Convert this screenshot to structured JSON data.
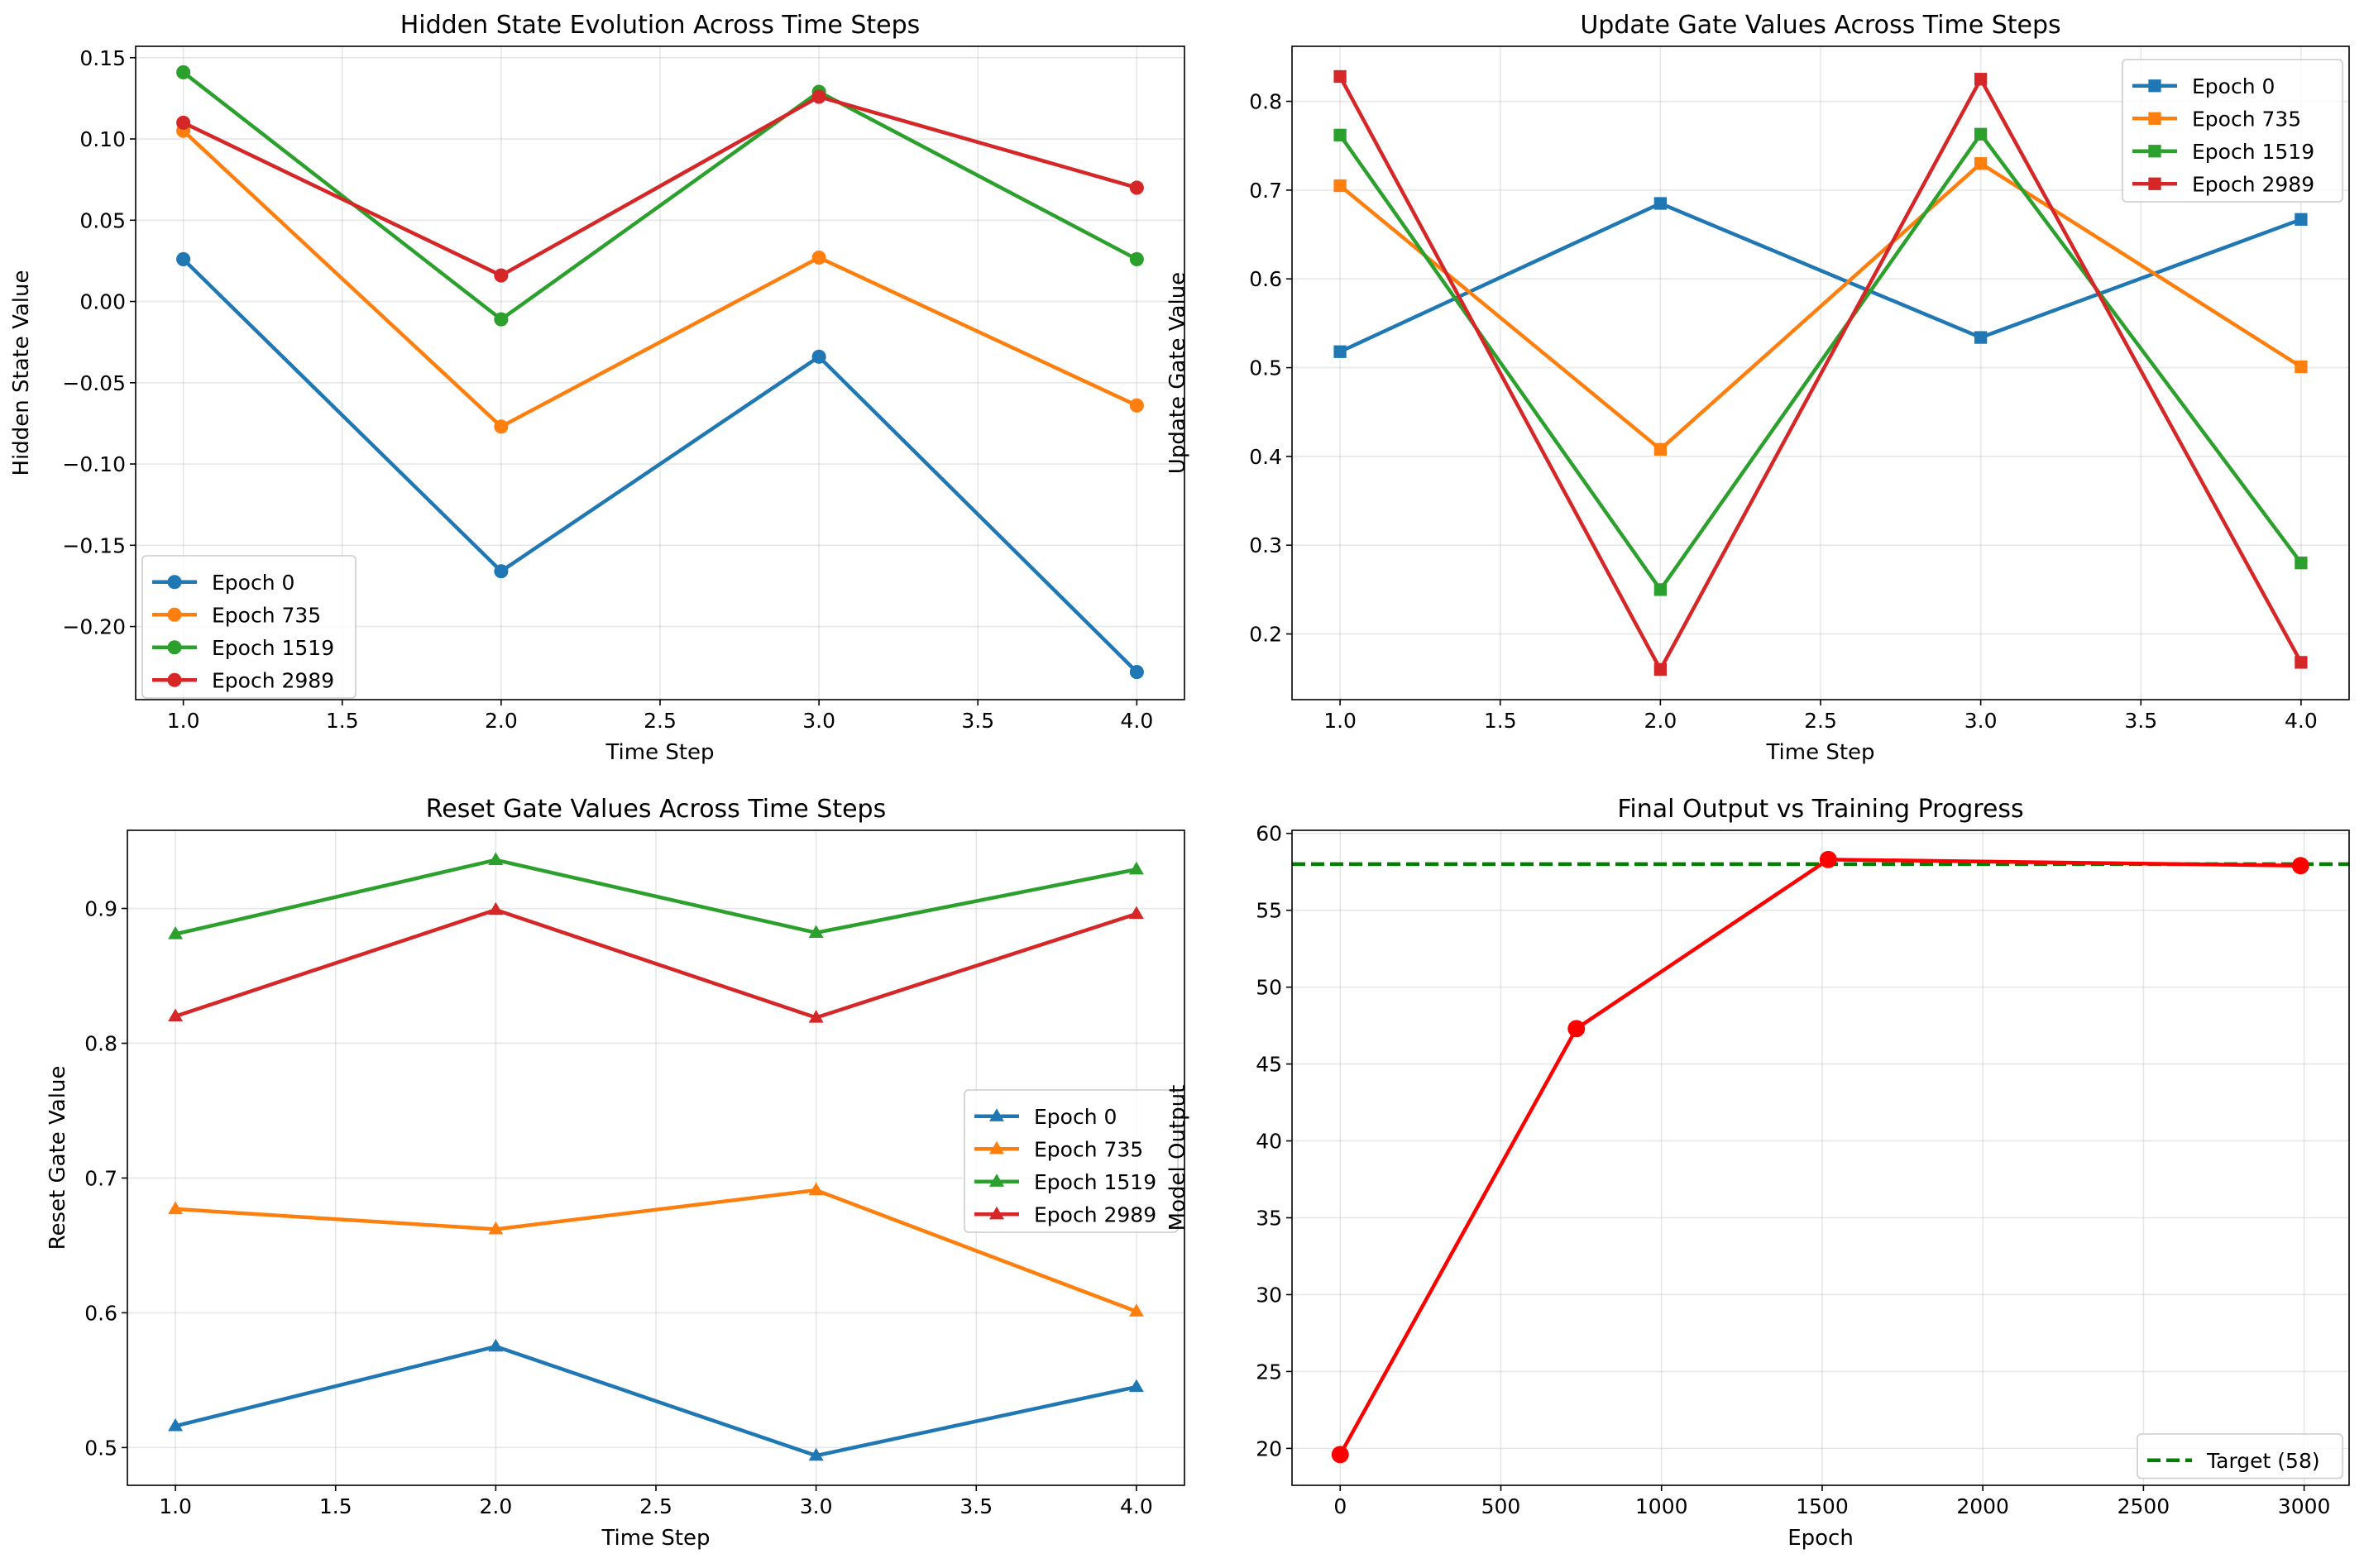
{
  "chart_data": [
    {
      "type": "line",
      "title": "Hidden State Evolution Across Time Steps",
      "xlabel": "Time Step",
      "ylabel": "Hidden State Value",
      "xlim": [
        0.85,
        4.15
      ],
      "ylim": [
        -0.245,
        0.157
      ],
      "xticks": [
        1.0,
        1.5,
        2.0,
        2.5,
        3.0,
        3.5,
        4.0
      ],
      "xtick_labels": [
        "1.0",
        "1.5",
        "2.0",
        "2.5",
        "3.0",
        "3.5",
        "4.0"
      ],
      "yticks": [
        -0.2,
        -0.15,
        -0.1,
        -0.05,
        0.0,
        0.05,
        0.1,
        0.15
      ],
      "ytick_labels": [
        "−0.20",
        "−0.15",
        "−0.10",
        "−0.05",
        "0.00",
        "0.05",
        "0.10",
        "0.15"
      ],
      "x": [
        1,
        2,
        3,
        4
      ],
      "marker": "circle",
      "grid": true,
      "legend": "lower-left",
      "series": [
        {
          "name": "Epoch 0",
          "color": "#1f77b4",
          "values": [
            0.026,
            -0.166,
            -0.034,
            -0.228
          ]
        },
        {
          "name": "Epoch 735",
          "color": "#ff7f0e",
          "values": [
            0.105,
            -0.077,
            0.027,
            -0.064
          ]
        },
        {
          "name": "Epoch 1519",
          "color": "#2ca02c",
          "values": [
            0.141,
            -0.011,
            0.129,
            0.026
          ]
        },
        {
          "name": "Epoch 2989",
          "color": "#d62728",
          "values": [
            0.11,
            0.016,
            0.126,
            0.07
          ]
        }
      ]
    },
    {
      "type": "line",
      "title": "Update Gate Values Across Time Steps",
      "xlabel": "Time Step",
      "ylabel": "Update Gate Value",
      "xlim": [
        0.85,
        4.15
      ],
      "ylim": [
        0.126,
        0.862
      ],
      "xticks": [
        1.0,
        1.5,
        2.0,
        2.5,
        3.0,
        3.5,
        4.0
      ],
      "xtick_labels": [
        "1.0",
        "1.5",
        "2.0",
        "2.5",
        "3.0",
        "3.5",
        "4.0"
      ],
      "yticks": [
        0.2,
        0.3,
        0.4,
        0.5,
        0.6,
        0.7,
        0.8
      ],
      "ytick_labels": [
        "0.2",
        "0.3",
        "0.4",
        "0.5",
        "0.6",
        "0.7",
        "0.8"
      ],
      "x": [
        1,
        2,
        3,
        4
      ],
      "marker": "square",
      "grid": true,
      "legend": "upper-right",
      "series": [
        {
          "name": "Epoch 0",
          "color": "#1f77b4",
          "values": [
            0.518,
            0.685,
            0.534,
            0.667
          ]
        },
        {
          "name": "Epoch 735",
          "color": "#ff7f0e",
          "values": [
            0.705,
            0.408,
            0.73,
            0.501
          ]
        },
        {
          "name": "Epoch 1519",
          "color": "#2ca02c",
          "values": [
            0.762,
            0.25,
            0.763,
            0.28
          ]
        },
        {
          "name": "Epoch 2989",
          "color": "#d62728",
          "values": [
            0.828,
            0.16,
            0.825,
            0.168
          ]
        }
      ]
    },
    {
      "type": "line",
      "title": "Reset Gate Values Across Time Steps",
      "xlabel": "Time Step",
      "ylabel": "Reset Gate Value",
      "xlim": [
        0.85,
        4.15
      ],
      "ylim": [
        0.472,
        0.958
      ],
      "xticks": [
        1.0,
        1.5,
        2.0,
        2.5,
        3.0,
        3.5,
        4.0
      ],
      "xtick_labels": [
        "1.0",
        "1.5",
        "2.0",
        "2.5",
        "3.0",
        "3.5",
        "4.0"
      ],
      "yticks": [
        0.5,
        0.6,
        0.7,
        0.8,
        0.9
      ],
      "ytick_labels": [
        "0.5",
        "0.6",
        "0.7",
        "0.8",
        "0.9"
      ],
      "x": [
        1,
        2,
        3,
        4
      ],
      "marker": "triangle",
      "grid": true,
      "legend": "center-right",
      "series": [
        {
          "name": "Epoch 0",
          "color": "#1f77b4",
          "values": [
            0.516,
            0.575,
            0.494,
            0.545
          ]
        },
        {
          "name": "Epoch 735",
          "color": "#ff7f0e",
          "values": [
            0.677,
            0.662,
            0.691,
            0.601
          ]
        },
        {
          "name": "Epoch 1519",
          "color": "#2ca02c",
          "values": [
            0.881,
            0.936,
            0.882,
            0.929
          ]
        },
        {
          "name": "Epoch 2989",
          "color": "#d62728",
          "values": [
            0.82,
            0.899,
            0.819,
            0.896
          ]
        }
      ]
    },
    {
      "type": "line",
      "title": "Final Output vs Training Progress",
      "xlabel": "Epoch",
      "ylabel": "Model Output",
      "xlim": [
        -150,
        3140
      ],
      "ylim": [
        17.6,
        60.2
      ],
      "xticks": [
        0,
        500,
        1000,
        1500,
        2000,
        2500,
        3000
      ],
      "xtick_labels": [
        "0",
        "500",
        "1000",
        "1500",
        "2000",
        "2500",
        "3000"
      ],
      "yticks": [
        20,
        25,
        30,
        35,
        40,
        45,
        50,
        55,
        60
      ],
      "ytick_labels": [
        "20",
        "25",
        "30",
        "35",
        "40",
        "45",
        "50",
        "55",
        "60"
      ],
      "marker": "circle",
      "grid": true,
      "legend": "lower-right",
      "series": [
        {
          "name": "",
          "color": "#ff0000",
          "x": [
            0,
            735,
            1519,
            2989
          ],
          "values": [
            19.6,
            47.3,
            58.3,
            57.9
          ]
        }
      ],
      "reference_lines": [
        {
          "name": "Target (58)",
          "value": 58,
          "color": "#008000",
          "style": "dashed"
        }
      ]
    }
  ]
}
